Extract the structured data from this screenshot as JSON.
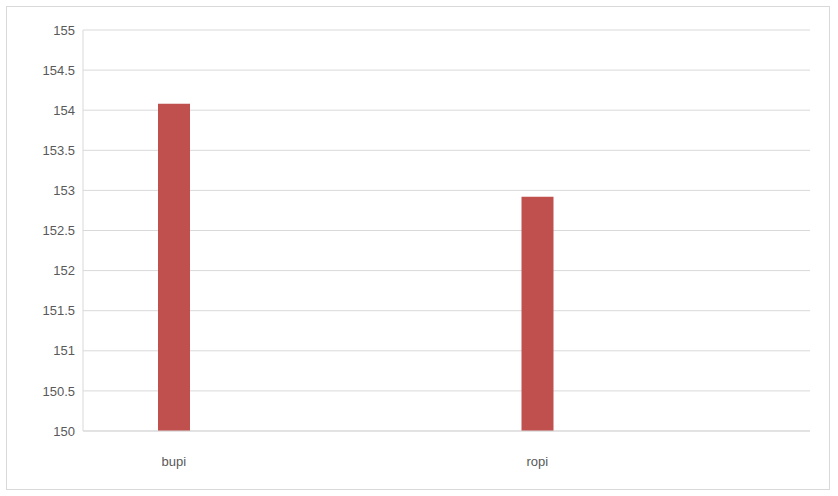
{
  "chart_data": {
    "type": "bar",
    "categories": [
      "bupi",
      null,
      "ropi",
      null
    ],
    "values": [
      154.08,
      null,
      152.92,
      null
    ],
    "color": "#c0504d",
    "ylim": [
      150,
      155
    ],
    "yticks": [
      150,
      150.5,
      151,
      151.5,
      152,
      152.5,
      153,
      153.5,
      154,
      154.5,
      155
    ],
    "grid": true
  }
}
